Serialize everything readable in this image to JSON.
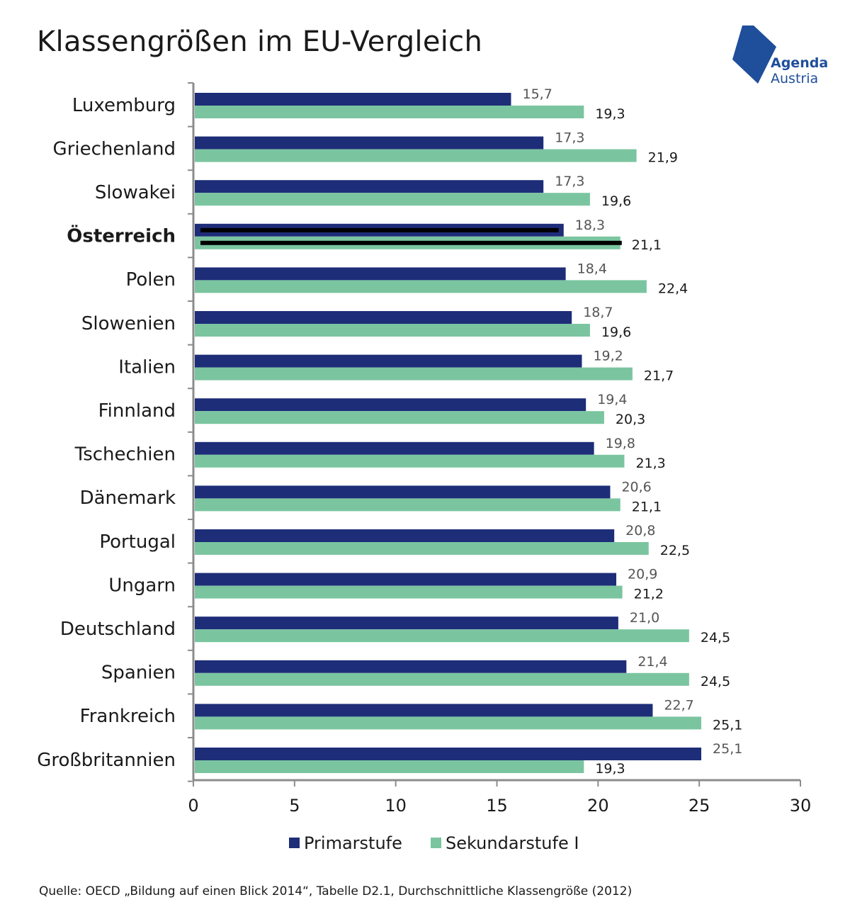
{
  "title": "Klassengrößen im EU-Vergleich",
  "logo": {
    "line1": "Agenda",
    "line2": "Austria"
  },
  "source": "Quelle: OECD „Bildung auf einen Blick 2014“, Tabelle D2.1, Durchschnittliche Klassengröße (2012)",
  "colors": {
    "primary": "#1e2d78",
    "secondary": "#7ac5a0",
    "highlight": "#000000",
    "logo": "#1f4e9b"
  },
  "chart_data": {
    "type": "bar",
    "orientation": "horizontal",
    "categories": [
      "Luxemburg",
      "Griechenland",
      "Slowakei",
      "Österreich",
      "Polen",
      "Slowenien",
      "Italien",
      "Finnland",
      "Tschechien",
      "Dänemark",
      "Portugal",
      "Ungarn",
      "Deutschland",
      "Spanien",
      "Frankreich",
      "Großbritannien"
    ],
    "highlight_category": "Österreich",
    "series": [
      {
        "name": "Primarstufe",
        "values": [
          15.7,
          17.3,
          17.3,
          18.3,
          18.4,
          18.7,
          19.2,
          19.4,
          19.8,
          20.6,
          20.8,
          20.9,
          21.0,
          21.4,
          22.7,
          25.1
        ],
        "labels": [
          "15,7",
          "17,3",
          "17,3",
          "18,3",
          "18,4",
          "18,7",
          "19,2",
          "19,4",
          "19,8",
          "20,6",
          "20,8",
          "20,9",
          "21,0",
          "21,4",
          "22,7",
          "25,1"
        ]
      },
      {
        "name": "Sekundarstufe I",
        "values": [
          19.3,
          21.9,
          19.6,
          21.1,
          22.4,
          19.6,
          21.7,
          20.3,
          21.3,
          21.1,
          22.5,
          21.2,
          24.5,
          24.5,
          25.1,
          19.3
        ],
        "labels": [
          "19,3",
          "21,9",
          "19,6",
          "21,1",
          "22,4",
          "19,6",
          "21,7",
          "20,3",
          "21,3",
          "21,1",
          "22,5",
          "21,2",
          "24,5",
          "24,5",
          "25,1",
          "19,3"
        ]
      }
    ],
    "xlim": [
      0,
      30
    ],
    "xticks": [
      0,
      5,
      10,
      15,
      20,
      25,
      30
    ],
    "xtick_labels": [
      "0",
      "5",
      "10",
      "15",
      "20",
      "25",
      "30"
    ],
    "grid": false,
    "legend": "bottom"
  }
}
